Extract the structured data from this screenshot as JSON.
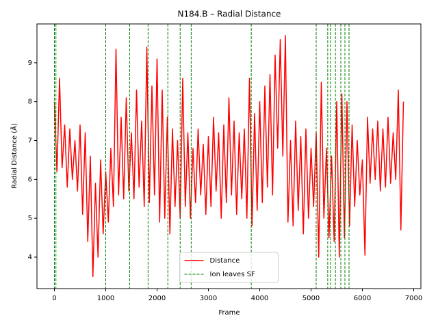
{
  "chart_data": {
    "type": "line",
    "title": "N184.B – Radial Distance",
    "x_label": "Frame",
    "y_label": "Radial Distance (Å)",
    "x": [
      0,
      50,
      100,
      150,
      200,
      250,
      300,
      350,
      400,
      450,
      500,
      550,
      600,
      650,
      700,
      750,
      800,
      850,
      900,
      950,
      1000,
      1050,
      1100,
      1150,
      1200,
      1250,
      1300,
      1350,
      1400,
      1450,
      1500,
      1550,
      1600,
      1650,
      1700,
      1750,
      1800,
      1850,
      1900,
      1950,
      2000,
      2050,
      2100,
      2150,
      2200,
      2250,
      2300,
      2350,
      2400,
      2450,
      2500,
      2550,
      2600,
      2650,
      2700,
      2750,
      2800,
      2850,
      2900,
      2950,
      3000,
      3050,
      3100,
      3150,
      3200,
      3250,
      3300,
      3350,
      3400,
      3450,
      3500,
      3550,
      3600,
      3650,
      3700,
      3750,
      3800,
      3850,
      3900,
      3950,
      4000,
      4050,
      4100,
      4150,
      4200,
      4250,
      4300,
      4350,
      4400,
      4450,
      4500,
      4550,
      4600,
      4650,
      4700,
      4750,
      4800,
      4850,
      4900,
      4950,
      5000,
      5050,
      5100,
      5150,
      5200,
      5250,
      5300,
      5350,
      5400,
      5450,
      5500,
      5550,
      5600,
      5650,
      5700,
      5750,
      5800,
      5850,
      5900,
      5950,
      6000,
      6050,
      6100,
      6150,
      6200,
      6250,
      6300,
      6350,
      6400,
      6450,
      6500,
      6550,
      6600,
      6650,
      6700,
      6750,
      6800
    ],
    "series": [
      {
        "name": "Distance",
        "color": "#ff0000",
        "values": [
          8.0,
          6.2,
          8.6,
          6.3,
          7.4,
          5.8,
          7.3,
          6.0,
          7.0,
          5.7,
          7.4,
          5.1,
          7.2,
          4.4,
          6.6,
          3.5,
          5.9,
          4.0,
          6.5,
          4.6,
          6.2,
          4.9,
          6.8,
          5.3,
          9.35,
          5.6,
          7.6,
          5.5,
          8.1,
          5.7,
          7.2,
          5.5,
          8.3,
          5.8,
          7.5,
          5.3,
          9.4,
          5.4,
          8.4,
          5.6,
          9.1,
          4.9,
          8.3,
          5.0,
          7.6,
          4.6,
          7.3,
          5.3,
          7.0,
          5.0,
          8.6,
          5.3,
          7.2,
          5.0,
          6.8,
          5.4,
          7.3,
          5.6,
          6.9,
          5.1,
          7.1,
          5.3,
          7.6,
          5.7,
          7.2,
          5.0,
          7.4,
          5.4,
          8.1,
          5.6,
          7.5,
          5.1,
          7.2,
          5.5,
          7.3,
          5.0,
          8.6,
          4.8,
          7.7,
          5.2,
          8.0,
          5.4,
          8.4,
          5.8,
          8.7,
          5.6,
          9.2,
          6.8,
          9.6,
          6.6,
          9.7,
          4.9,
          7.0,
          4.8,
          7.5,
          5.2,
          7.1,
          4.6,
          7.3,
          5.0,
          6.8,
          5.3,
          7.2,
          4.0,
          8.5,
          5.0,
          6.8,
          4.5,
          6.6,
          4.4,
          8.0,
          4.0,
          8.2,
          4.5,
          8.0,
          4.8,
          7.4,
          5.3,
          7.0,
          5.6,
          6.5,
          4.05,
          7.6,
          5.9,
          7.3,
          6.0,
          7.5,
          5.7,
          7.3,
          5.8,
          7.6,
          5.9,
          7.2,
          6.0,
          8.3,
          4.7,
          8.0
        ]
      }
    ],
    "events": {
      "name": "Ion leaves SF",
      "color": "#008000",
      "x": [
        0,
        30,
        1000,
        1465,
        1825,
        2210,
        2450,
        2665,
        3835,
        5100,
        5325,
        5380,
        5475,
        5580,
        5660,
        5740
      ]
    },
    "xlim": [
      -340,
      7140
    ],
    "ylim": [
      3.19,
      10.0
    ],
    "xticks": [
      0,
      1000,
      2000,
      3000,
      4000,
      5000,
      6000,
      7000
    ],
    "yticks": [
      4,
      5,
      6,
      7,
      8,
      9
    ],
    "legend": "lower center"
  }
}
